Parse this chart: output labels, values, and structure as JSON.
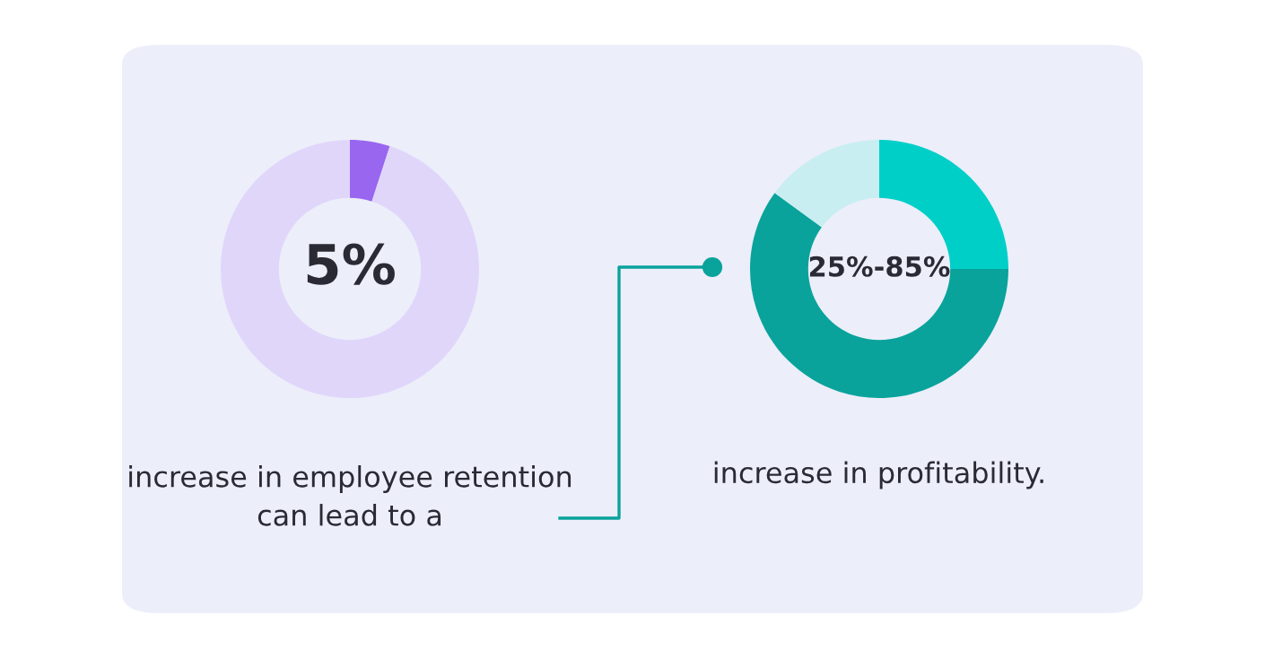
{
  "chart_data": [
    {
      "type": "donut",
      "categories": [
        null,
        null
      ],
      "values": [
        5,
        95
      ],
      "colors": [
        "#9966f0",
        "#e0d6fa"
      ],
      "annotations": [
        "5%",
        "increase in employee retention can lead to a"
      ]
    },
    {
      "type": "donut",
      "categories": [
        null,
        null,
        null
      ],
      "values": [
        25,
        60,
        15
      ],
      "colors": [
        "#00cfc8",
        "#09a39b",
        "#c8eef2"
      ],
      "annotations": [
        "25%-85%",
        "increase in profitability."
      ]
    }
  ]
}
